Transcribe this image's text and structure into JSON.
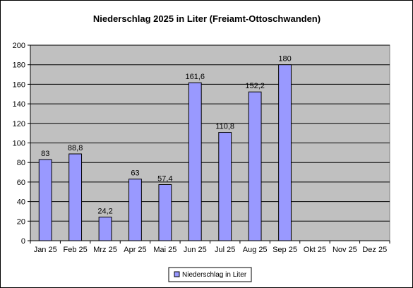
{
  "chart_data": {
    "type": "bar",
    "title": "Niederschlag 2025 in Liter (Freiamt-Ottoschwanden)",
    "categories": [
      "Jan 25",
      "Feb 25",
      "Mrz 25",
      "Apr 25",
      "Mai 25",
      "Jun 25",
      "Jul 25",
      "Aug 25",
      "Sep 25",
      "Okt 25",
      "Nov 25",
      "Dez 25"
    ],
    "series": [
      {
        "name": "Niederschlag in Liter",
        "values": [
          83,
          88.8,
          24.2,
          63,
          57.4,
          161.6,
          110.8,
          152.2,
          180,
          null,
          null,
          null
        ],
        "labels": [
          "83",
          "88,8",
          "24,2",
          "63",
          "57,4",
          "161,6",
          "110,8",
          "152,2",
          "180",
          "",
          "",
          ""
        ]
      }
    ],
    "xlabel": "",
    "ylabel": "",
    "ylim": [
      0,
      200
    ],
    "yticks": [
      "0",
      "20",
      "40",
      "60",
      "80",
      "100",
      "120",
      "140",
      "160",
      "180",
      "200"
    ],
    "grid": true,
    "legend_position": "bottom-center",
    "colors": {
      "bar_fill": "#9999ff",
      "bar_stroke": "#000000",
      "plot_background": "#c0c0c0",
      "grid": "#000000",
      "frame": "#000000"
    }
  }
}
